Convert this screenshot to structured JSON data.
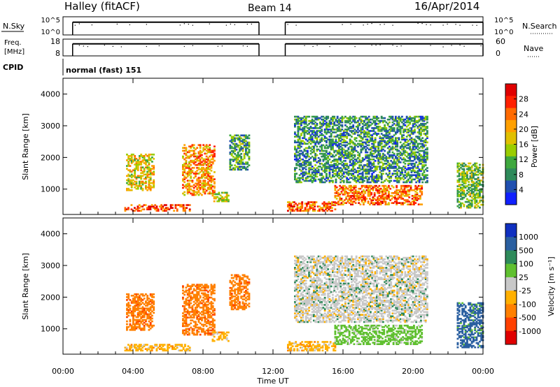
{
  "header": {
    "station": "Halley (fitACF)",
    "beam": "Beam 14",
    "date": "16/Apr/2014"
  },
  "chart_data": [
    {
      "type": "line",
      "name": "N.Sky / N.Search",
      "left_label": "N.Sky",
      "right_label": "N.Search",
      "left_ticks": [
        "10^5",
        "10^0"
      ],
      "right_ticks": [
        "10^5",
        "10^0"
      ],
      "segments": [
        {
          "start_h": 0.55,
          "end_h": 11.2,
          "level": 0.7
        },
        {
          "start_h": 12.7,
          "end_h": 24.0,
          "level": 0.7
        }
      ]
    },
    {
      "type": "line",
      "name": "Freq. / Nave",
      "left_label_1": "Freq.",
      "left_label_2": "[MHz]",
      "right_label": "Nave",
      "left_ticks": [
        "18",
        "8"
      ],
      "right_ticks": [
        "60",
        "0"
      ],
      "segments": [
        {
          "start_h": 0.55,
          "end_h": 11.2,
          "level": 0.72
        },
        {
          "start_h": 12.7,
          "end_h": 24.0,
          "level": 0.72
        }
      ]
    },
    {
      "type": "heatmap",
      "name": "Power",
      "ylabel": "Slant Range [km]",
      "ylim": [
        200,
        4500
      ],
      "yticks": [
        1000,
        2000,
        3000,
        4000
      ],
      "xlim": [
        0,
        24
      ],
      "colorbar_label": "Power [dB]",
      "colorbar_ticks": [
        "28",
        "24",
        "20",
        "16",
        "12",
        "8",
        "4"
      ],
      "colorbar_colors": [
        "#e00000",
        "#ff2000",
        "#ff6a00",
        "#ffa000",
        "#e0c000",
        "#9acd00",
        "#3ea83e",
        "#2e8a5a",
        "#2050b0",
        "#1020ff"
      ],
      "echo_regions": [
        {
          "t0": 3.5,
          "t1": 7.2,
          "r0": 300,
          "r1": 500,
          "intensity": 0.85
        },
        {
          "t0": 3.6,
          "t1": 5.2,
          "r0": 950,
          "r1": 2100,
          "intensity": 0.55
        },
        {
          "t0": 6.8,
          "t1": 8.6,
          "r0": 800,
          "r1": 2400,
          "intensity": 0.7
        },
        {
          "t0": 8.5,
          "t1": 9.4,
          "r0": 600,
          "r1": 900,
          "intensity": 0.5
        },
        {
          "t0": 9.5,
          "t1": 10.6,
          "r0": 1600,
          "r1": 2700,
          "intensity": 0.3
        },
        {
          "t0": 12.8,
          "t1": 15.5,
          "r0": 300,
          "r1": 600,
          "intensity": 0.8
        },
        {
          "t0": 15.5,
          "t1": 20.5,
          "r0": 500,
          "r1": 1100,
          "intensity": 0.75
        },
        {
          "t0": 13.2,
          "t1": 20.8,
          "r0": 1200,
          "r1": 3300,
          "intensity": 0.25
        },
        {
          "t0": 22.5,
          "t1": 24.0,
          "r0": 400,
          "r1": 1800,
          "intensity": 0.4
        }
      ]
    },
    {
      "type": "heatmap",
      "name": "Velocity",
      "ylabel": "Slant Range [km]",
      "ylim": [
        200,
        4500
      ],
      "yticks": [
        1000,
        2000,
        3000,
        4000
      ],
      "xlim": [
        0,
        24
      ],
      "xticks": [
        "00:00",
        "04:00",
        "08:00",
        "12:00",
        "16:00",
        "20:00",
        "00:00"
      ],
      "xlabel": "Time UT",
      "colorbar_label": "Velocity [m s⁻¹]",
      "colorbar_ticks": [
        "1000",
        "500",
        "100",
        "25",
        "-25",
        "-100",
        "-500",
        "-1000"
      ],
      "colorbar_colors": [
        "#1030c0",
        "#2a5fa0",
        "#2e8a5a",
        "#60c030",
        "#c8c8c8",
        "#ffb000",
        "#ff8000",
        "#ff4000",
        "#e00000"
      ],
      "echo_regions": [
        {
          "t0": 3.5,
          "t1": 7.2,
          "r0": 300,
          "r1": 500,
          "velocity": -100
        },
        {
          "t0": 3.6,
          "t1": 5.2,
          "r0": 950,
          "r1": 2100,
          "velocity": -500
        },
        {
          "t0": 6.8,
          "t1": 8.6,
          "r0": 800,
          "r1": 2400,
          "velocity": -500
        },
        {
          "t0": 8.5,
          "t1": 9.4,
          "r0": 600,
          "r1": 900,
          "velocity": -100
        },
        {
          "t0": 9.5,
          "t1": 10.6,
          "r0": 1600,
          "r1": 2700,
          "velocity": -500
        },
        {
          "t0": 12.8,
          "t1": 15.5,
          "r0": 300,
          "r1": 600,
          "velocity": -100
        },
        {
          "t0": 15.5,
          "t1": 20.5,
          "r0": 500,
          "r1": 1100,
          "velocity": 100
        },
        {
          "t0": 13.2,
          "t1": 20.8,
          "r0": 1200,
          "r1": 3300,
          "velocity": 0
        },
        {
          "t0": 22.5,
          "t1": 24.0,
          "r0": 400,
          "r1": 1800,
          "velocity": 500
        }
      ]
    }
  ],
  "cpid": {
    "label": "CPID",
    "text": "normal (fast) 151"
  }
}
